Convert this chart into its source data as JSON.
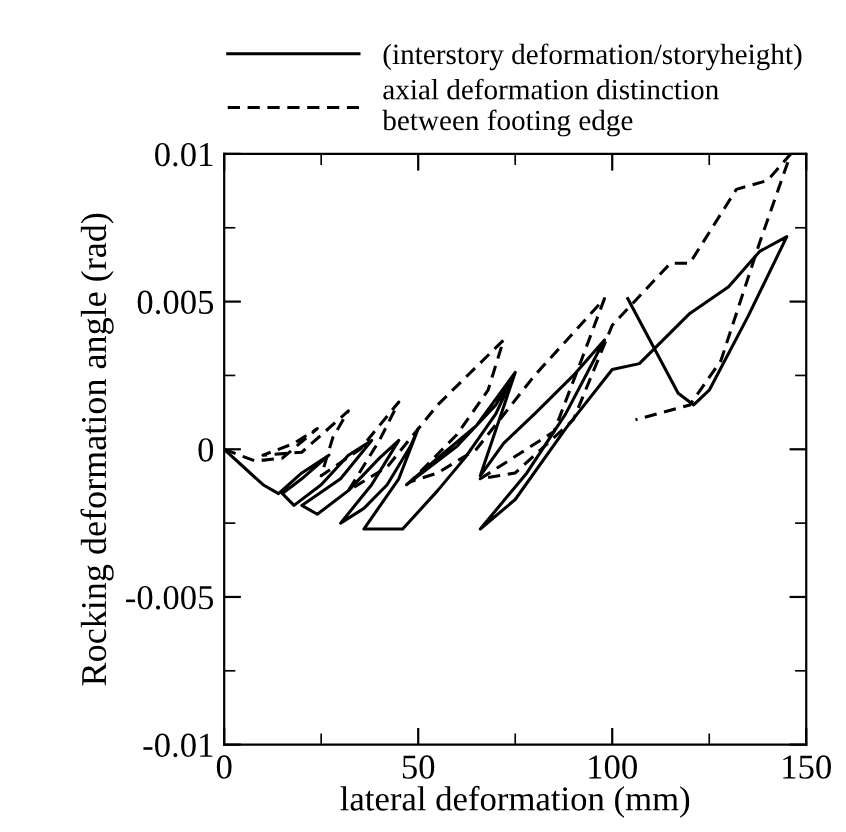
{
  "chart_data": {
    "type": "line",
    "xlabel": "lateral deformation (mm)",
    "ylabel": "Rocking deformation angle (rad)",
    "xlim": [
      0,
      150
    ],
    "xticks": [
      0,
      50,
      100,
      150
    ],
    "ylim": [
      -0.01,
      0.01
    ],
    "yticks": [
      -0.01,
      -0.005,
      0,
      0.005,
      0.01
    ],
    "legend": "top",
    "grid": false,
    "series": [
      {
        "name": "(interstory deformation/storyheight)",
        "color": "#000000",
        "line_style": "solid",
        "x": [
          0,
          5,
          10,
          14,
          20,
          27,
          20,
          15,
          18,
          25,
          32,
          38,
          30,
          20,
          24,
          32,
          40,
          45,
          38,
          30,
          36,
          42,
          48,
          50,
          45,
          36,
          46,
          55,
          62,
          70,
          75,
          70,
          60,
          48,
          47,
          55,
          65,
          75,
          66,
          72,
          80,
          90,
          98,
          88,
          78,
          66,
          75,
          88,
          100,
          107,
          120,
          130,
          138,
          145,
          135,
          125,
          121,
          117,
          104
        ],
        "values": [
          0,
          -0.0006,
          -0.0012,
          -0.0015,
          -0.0008,
          -0.0002,
          -0.001,
          -0.0015,
          -0.0019,
          -0.0012,
          -0.0002,
          0.0003,
          -0.001,
          -0.0019,
          -0.0022,
          -0.0014,
          -0.0003,
          0.0003,
          -0.0012,
          -0.0025,
          -0.002,
          -0.0012,
          0.0001,
          0.0007,
          -0.001,
          -0.0027,
          -0.0027,
          -0.0014,
          -0.0003,
          0.0012,
          0.0026,
          0.0015,
          0.0001,
          -0.0011,
          -0.0012,
          -0.0003,
          0.0008,
          0.0026,
          -0.0009,
          0.0002,
          0.0012,
          0.0025,
          0.0037,
          0.0012,
          -0.0008,
          -0.0027,
          -0.0017,
          0.0007,
          0.0027,
          0.0029,
          0.0046,
          0.0055,
          0.0067,
          0.0072,
          0.0045,
          0.002,
          0.0015,
          0.0019,
          0.0051
        ]
      },
      {
        "name": "axial deformation distinction\nbetween footing edge",
        "color": "#000000",
        "line_style": "dashed",
        "x": [
          0,
          8,
          15,
          24,
          18,
          10,
          20,
          32,
          28,
          25,
          35,
          45,
          40,
          32,
          42,
          55,
          72,
          68,
          60,
          48,
          55,
          65,
          80,
          98,
          92,
          85,
          66,
          75,
          90,
          100,
          115,
          120,
          132,
          140,
          146,
          138,
          128,
          120,
          106
        ],
        "values": [
          0,
          -0.0004,
          -0.0003,
          0.0007,
          0.0002,
          -0.0002,
          -0.0001,
          0.0013,
          0.0004,
          -0.0009,
          0,
          0.0016,
          0.0003,
          -0.0014,
          -0.0006,
          0.0015,
          0.0037,
          0.002,
          0.0005,
          -0.0011,
          -0.0008,
          0,
          0.0025,
          0.0051,
          0.003,
          0.0006,
          -0.001,
          -0.0008,
          0.001,
          0.0042,
          0.0063,
          0.0063,
          0.0088,
          0.0091,
          0.01,
          0.007,
          0.003,
          0.0015,
          0.001
        ]
      }
    ]
  }
}
